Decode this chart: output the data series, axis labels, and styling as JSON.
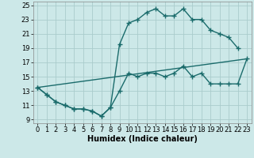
{
  "xlabel": "Humidex (Indice chaleur)",
  "background_color": "#cce8e8",
  "grid_color": "#aacccc",
  "line_color": "#1a6b6b",
  "xlim": [
    -0.5,
    23.5
  ],
  "ylim": [
    8.5,
    25.5
  ],
  "xticks": [
    0,
    1,
    2,
    3,
    4,
    5,
    6,
    7,
    8,
    9,
    10,
    11,
    12,
    13,
    14,
    15,
    16,
    17,
    18,
    19,
    20,
    21,
    22,
    23
  ],
  "yticks": [
    9,
    11,
    13,
    15,
    17,
    19,
    21,
    23,
    25
  ],
  "line1_x": [
    0,
    1,
    2,
    3,
    4,
    5,
    6,
    7,
    8,
    9,
    10,
    11,
    12,
    13,
    14,
    15,
    16,
    17,
    18,
    19,
    20,
    21,
    22,
    23
  ],
  "line1_y": [
    13.5,
    12.5,
    11.5,
    11.0,
    10.5,
    10.5,
    10.2,
    9.5,
    10.7,
    13.0,
    15.5,
    15.0,
    15.5,
    15.5,
    15.0,
    15.5,
    16.5,
    15.0,
    15.5,
    14.0,
    14.0,
    14.0,
    14.0,
    17.5
  ],
  "line2_x": [
    0,
    1,
    2,
    3,
    4,
    5,
    6,
    7,
    8,
    9,
    10,
    11,
    12,
    13,
    14,
    15,
    16,
    17,
    18,
    19,
    20,
    21,
    22
  ],
  "line2_y": [
    13.5,
    12.5,
    11.5,
    11.0,
    10.5,
    10.5,
    10.2,
    9.5,
    10.7,
    19.5,
    22.5,
    23.0,
    24.0,
    24.5,
    23.5,
    23.5,
    24.5,
    23.0,
    23.0,
    21.5,
    21.0,
    20.5,
    19.0
  ],
  "line3_x": [
    0,
    23
  ],
  "line3_y": [
    13.5,
    17.5
  ],
  "marker": "+",
  "marker_size": 4,
  "markeredgewidth": 1.0,
  "linewidth": 1.0,
  "font_size": 7,
  "xlabel_fontsize": 7,
  "tick_fontsize": 6
}
